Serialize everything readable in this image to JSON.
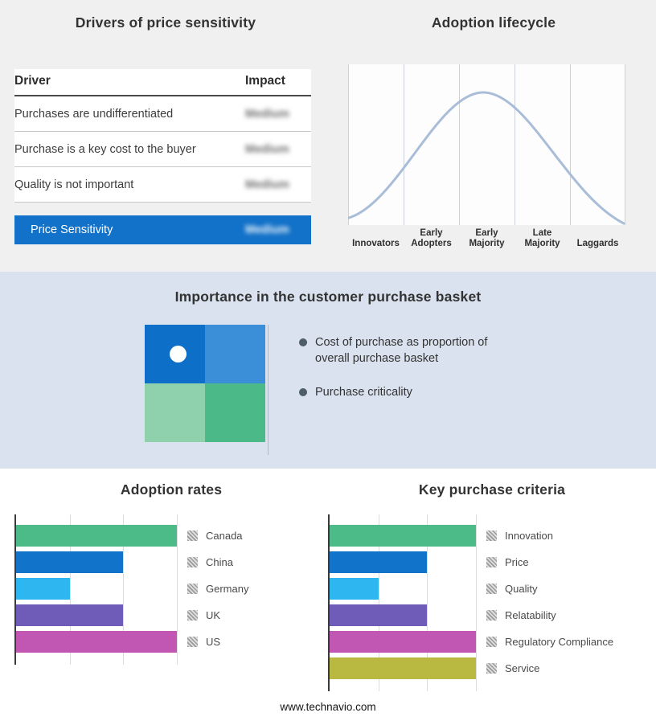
{
  "footer": {
    "url": "www.technavio.com"
  },
  "drivers_panel": {
    "title": "Drivers of price sensitivity",
    "table": {
      "headers": {
        "driver": "Driver",
        "impact": "Impact"
      },
      "rows": [
        {
          "driver": "Purchases are undifferentiated",
          "impact": "Medium"
        },
        {
          "driver": "Purchase is a key cost to the buyer",
          "impact": "Medium"
        },
        {
          "driver": "Quality is not important",
          "impact": "Medium"
        }
      ],
      "highlight_row": {
        "driver": "Price Sensitivity",
        "impact": "Medium",
        "color": "#1271c8"
      },
      "impact_values_blurred": true
    }
  },
  "importance_panel": {
    "title": "Importance in the customer purchase basket",
    "bullets": [
      "Cost of purchase as proportion of overall purchase basket",
      "Purchase criticality"
    ],
    "quadrant_colors": {
      "top_left": "#0e6fc8",
      "top_right": "#3b8fd8",
      "bottom_left": "#8fd0ad",
      "bottom_right": "#4cba88"
    }
  },
  "chart_data": [
    {
      "id": "adoption_lifecycle",
      "type": "line",
      "shape": "bell-curve",
      "title": "Adoption lifecycle",
      "stages": [
        "Innovators",
        "Early Adopters",
        "Early Majority",
        "Late Majority",
        "Laggards"
      ],
      "peak_stage": "Early Majority",
      "curve_color": "#a9bdd8",
      "grid": true
    },
    {
      "id": "adoption_rates",
      "type": "bar",
      "orientation": "horizontal",
      "title": "Adoption rates",
      "categories": [
        "Canada",
        "China",
        "Germany",
        "UK",
        "US"
      ],
      "values": [
        3,
        2,
        1,
        2,
        3
      ],
      "xlim": [
        0,
        3
      ],
      "grid": true,
      "colors": [
        "#4cbb88",
        "#1173c9",
        "#2db6ef",
        "#6e5cb8",
        "#c157b2"
      ],
      "legend_position": "right"
    },
    {
      "id": "key_purchase_criteria",
      "type": "bar",
      "orientation": "horizontal",
      "title": "Key purchase criteria",
      "categories": [
        "Innovation",
        "Price",
        "Quality",
        "Relatability",
        "Regulatory Compliance",
        "Service"
      ],
      "values": [
        3,
        2,
        1,
        2,
        3,
        3
      ],
      "xlim": [
        0,
        3
      ],
      "grid": true,
      "colors": [
        "#4cbb88",
        "#1173c9",
        "#2db6ef",
        "#6e5cb8",
        "#c157b2",
        "#b9b840"
      ],
      "legend_position": "right"
    }
  ]
}
